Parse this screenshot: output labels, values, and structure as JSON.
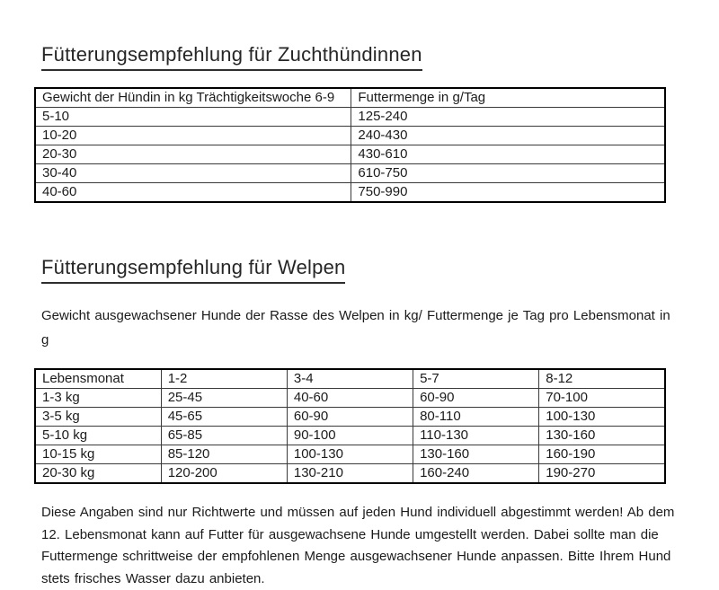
{
  "section1": {
    "title": "Fütterungsempfehlung für Zuchthündinnen",
    "table": {
      "headers": [
        "Gewicht der Hündin in kg Trächtigkeitswoche 6-9",
        "Futtermenge in g/Tag"
      ],
      "rows": [
        [
          "5-10",
          "125-240"
        ],
        [
          "10-20",
          "240-430"
        ],
        [
          "20-30",
          "430-610"
        ],
        [
          "30-40",
          "610-750"
        ],
        [
          "40-60",
          "750-990"
        ]
      ]
    }
  },
  "section2": {
    "title": "Fütterungsempfehlung für Welpen",
    "description": "Gewicht ausgewachsener Hunde der Rasse des Welpen in kg/ Futtermenge je Tag pro Lebensmonat in g",
    "table": {
      "headers": [
        "Lebensmonat",
        "1-2",
        "3-4",
        "5-7",
        "8-12"
      ],
      "rows": [
        [
          "1-3 kg",
          "25-45",
          "40-60",
          "60-90",
          "70-100"
        ],
        [
          "3-5 kg",
          "45-65",
          "60-90",
          "80-110",
          "100-130"
        ],
        [
          "5-10 kg",
          "65-85",
          "90-100",
          "110-130",
          "130-160"
        ],
        [
          "10-15 kg",
          "85-120",
          "100-130",
          "130-160",
          "160-190"
        ],
        [
          "20-30 kg",
          "120-200",
          "130-210",
          "160-240",
          "190-270"
        ]
      ]
    }
  },
  "footnote": "Diese Angaben sind nur Richtwerte und müssen auf jeden Hund individuell abgestimmt werden! Ab dem 12. Lebensmonat kann auf Futter für ausgewachsene Hunde umgestellt werden. Dabei sollte man die Futtermenge schrittweise der empfohlenen Menge ausgewachsener Hunde anpassen. Bitte Ihrem Hund stets frisches Wasser dazu anbieten.",
  "colors": {
    "background": "#ffffff",
    "text": "#1b1b1b",
    "border": "#000000"
  }
}
